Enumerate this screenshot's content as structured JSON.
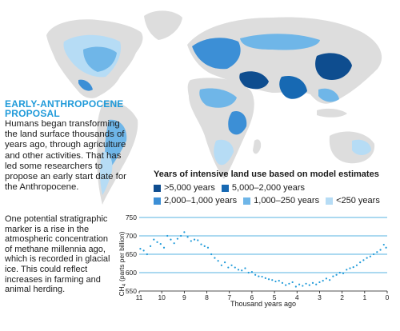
{
  "map": {
    "colors": {
      "land": "#dddddd",
      "gt5000": "#0e4d8f",
      "y5000_2000": "#1769b3",
      "y2000_1000": "#3c8fd6",
      "y1000_250": "#6fb6e8",
      "lt250": "#b6dcf5"
    }
  },
  "sidebar": {
    "title_line1": "EARLY-ANTHROPOCENE",
    "title_line2": "PROPOSAL",
    "text": "Humans began transforming the land surface thousands of years ago, through agriculture and other activities. That has led some researchers to propose an early start date for the Anthropocene.",
    "marker_text": "One potential stratigraphic marker is a rise in the atmospheric concentration of methane millennia ago, which is recorded in glacial ice. This could reflect increases in farming and animal herding."
  },
  "legend": {
    "title": "Years of intensive land use based on model estimates",
    "items": [
      {
        "label": ">5,000 years",
        "color": "#0e4d8f"
      },
      {
        "label": "5,000–2,000 years",
        "color": "#1769b3"
      },
      {
        "label": "2,000–1,000 years",
        "color": "#3c8fd6"
      },
      {
        "label": "1,000–250 years",
        "color": "#6fb6e8"
      },
      {
        "label": "<250 years",
        "color": "#b6dcf5"
      }
    ]
  },
  "chart_data": {
    "type": "scatter",
    "xlabel": "Thousand years ago",
    "ylabel_main": "CH",
    "ylabel_sub": "4",
    "ylabel_units": "(parts per billion)",
    "xlim": [
      11,
      0
    ],
    "ylim": [
      550,
      750
    ],
    "xticks": [
      11,
      10,
      9,
      8,
      7,
      6,
      5,
      4,
      3,
      2,
      1,
      0
    ],
    "yticks": [
      550,
      600,
      650,
      700,
      750
    ],
    "grid": "horizontal",
    "color": "#1f9ad9",
    "series": [
      {
        "x": [
          10.95,
          10.8,
          10.65,
          10.5,
          10.35,
          10.2,
          10.05,
          9.9,
          9.75,
          9.6,
          9.45,
          9.3,
          9.15,
          9.0,
          8.85,
          8.7,
          8.55,
          8.4,
          8.25,
          8.1,
          7.95,
          7.8,
          7.65,
          7.5,
          7.35,
          7.2,
          7.05,
          6.9,
          6.75,
          6.6,
          6.45,
          6.3,
          6.15,
          6.0,
          5.85,
          5.7,
          5.55,
          5.4,
          5.25,
          5.1,
          4.95,
          4.8,
          4.65,
          4.5,
          4.35,
          4.2,
          4.05,
          3.9,
          3.75,
          3.6,
          3.45,
          3.3,
          3.15,
          3.0,
          2.85,
          2.7,
          2.55,
          2.4,
          2.25,
          2.1,
          1.95,
          1.8,
          1.65,
          1.5,
          1.35,
          1.2,
          1.05,
          0.9,
          0.75,
          0.6,
          0.45,
          0.3,
          0.15,
          0.05
        ],
        "y": [
          665,
          660,
          650,
          672,
          690,
          683,
          678,
          668,
          700,
          690,
          680,
          692,
          700,
          710,
          697,
          686,
          690,
          688,
          677,
          672,
          668,
          650,
          640,
          632,
          620,
          628,
          614,
          620,
          614,
          608,
          606,
          612,
          600,
          602,
          594,
          590,
          589,
          585,
          582,
          580,
          576,
          578,
          572,
          566,
          570,
          574,
          562,
          568,
          564,
          570,
          566,
          572,
          568,
          574,
          578,
          584,
          580,
          590,
          594,
          600,
          598,
          608,
          612,
          615,
          620,
          628,
          634,
          640,
          644,
          650,
          656,
          662,
          676,
          668
        ]
      }
    ]
  }
}
